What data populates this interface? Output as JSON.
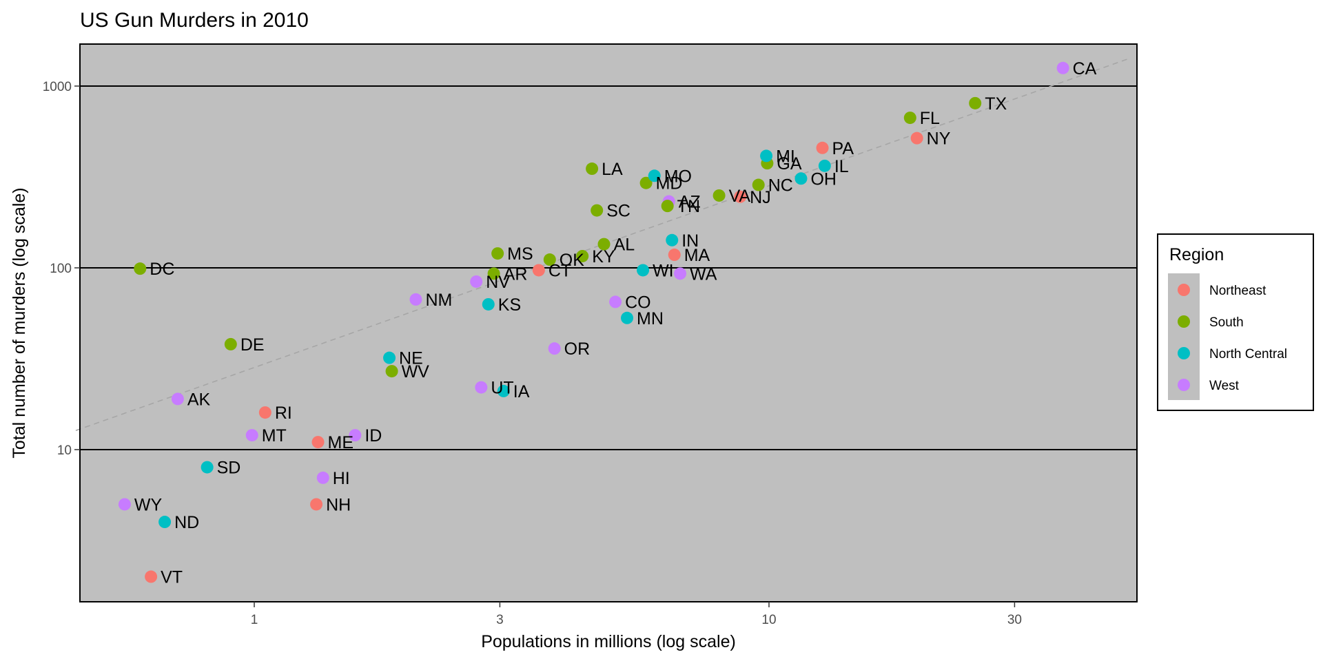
{
  "chart_data": {
    "type": "scatter",
    "title": "US Gun Murders in 2010",
    "xlabel": "Populations in millions (log scale)",
    "ylabel": "Total number of murders (log scale)",
    "x_scale": "log10",
    "y_scale": "log10",
    "xlim": [
      0.45,
      50
    ],
    "ylim": [
      1.5,
      1700
    ],
    "x_ticks": [
      {
        "value": 1,
        "label": "1"
      },
      {
        "value": 3,
        "label": "3"
      },
      {
        "value": 10,
        "label": "10"
      },
      {
        "value": 30,
        "label": "30"
      }
    ],
    "y_ticks": [
      {
        "value": 10,
        "label": "10"
      },
      {
        "value": 100,
        "label": "100"
      },
      {
        "value": 1000,
        "label": "1000"
      }
    ],
    "grid": "major y only",
    "reference_line": {
      "style": "dashed",
      "color": "#a6a6a6",
      "description": "average murder rate line",
      "rate_per_million": 28.3
    },
    "legend": {
      "title": "Region",
      "position": "right",
      "entries": [
        {
          "name": "Northeast",
          "color": "#F8766D"
        },
        {
          "name": "South",
          "color": "#7CAE00"
        },
        {
          "name": "North Central",
          "color": "#00BFC4"
        },
        {
          "name": "West",
          "color": "#C77CFF"
        }
      ]
    },
    "points": [
      {
        "abb": "AL",
        "region": "South",
        "population": 4.78,
        "total": 135
      },
      {
        "abb": "AK",
        "region": "West",
        "population": 0.71,
        "total": 19
      },
      {
        "abb": "AZ",
        "region": "West",
        "population": 6.39,
        "total": 232
      },
      {
        "abb": "AR",
        "region": "South",
        "population": 2.92,
        "total": 93
      },
      {
        "abb": "CA",
        "region": "West",
        "population": 37.25,
        "total": 1257
      },
      {
        "abb": "CO",
        "region": "West",
        "population": 5.03,
        "total": 65
      },
      {
        "abb": "CT",
        "region": "Northeast",
        "population": 3.57,
        "total": 97
      },
      {
        "abb": "DE",
        "region": "South",
        "population": 0.9,
        "total": 38
      },
      {
        "abb": "DC",
        "region": "South",
        "population": 0.6,
        "total": 99
      },
      {
        "abb": "FL",
        "region": "South",
        "population": 18.8,
        "total": 669
      },
      {
        "abb": "GA",
        "region": "South",
        "population": 9.92,
        "total": 376
      },
      {
        "abb": "HI",
        "region": "West",
        "population": 1.36,
        "total": 7
      },
      {
        "abb": "ID",
        "region": "West",
        "population": 1.57,
        "total": 12
      },
      {
        "abb": "IL",
        "region": "North Central",
        "population": 12.83,
        "total": 364
      },
      {
        "abb": "IN",
        "region": "North Central",
        "population": 6.48,
        "total": 142
      },
      {
        "abb": "IA",
        "region": "North Central",
        "population": 3.05,
        "total": 21
      },
      {
        "abb": "KS",
        "region": "North Central",
        "population": 2.85,
        "total": 63
      },
      {
        "abb": "KY",
        "region": "South",
        "population": 4.34,
        "total": 116
      },
      {
        "abb": "LA",
        "region": "South",
        "population": 4.53,
        "total": 351
      },
      {
        "abb": "ME",
        "region": "Northeast",
        "population": 1.33,
        "total": 11
      },
      {
        "abb": "MD",
        "region": "South",
        "population": 5.77,
        "total": 293
      },
      {
        "abb": "MA",
        "region": "Northeast",
        "population": 6.55,
        "total": 118
      },
      {
        "abb": "MI",
        "region": "North Central",
        "population": 9.88,
        "total": 413
      },
      {
        "abb": "MN",
        "region": "North Central",
        "population": 5.3,
        "total": 53
      },
      {
        "abb": "MS",
        "region": "South",
        "population": 2.97,
        "total": 120
      },
      {
        "abb": "MO",
        "region": "North Central",
        "population": 5.99,
        "total": 321
      },
      {
        "abb": "MT",
        "region": "West",
        "population": 0.99,
        "total": 12
      },
      {
        "abb": "NE",
        "region": "North Central",
        "population": 1.83,
        "total": 32
      },
      {
        "abb": "NV",
        "region": "West",
        "population": 2.7,
        "total": 84
      },
      {
        "abb": "NH",
        "region": "Northeast",
        "population": 1.32,
        "total": 5
      },
      {
        "abb": "NJ",
        "region": "Northeast",
        "population": 8.79,
        "total": 246
      },
      {
        "abb": "NM",
        "region": "West",
        "population": 2.06,
        "total": 67
      },
      {
        "abb": "NY",
        "region": "Northeast",
        "population": 19.38,
        "total": 517
      },
      {
        "abb": "NC",
        "region": "South",
        "population": 9.54,
        "total": 286
      },
      {
        "abb": "ND",
        "region": "North Central",
        "population": 0.67,
        "total": 4
      },
      {
        "abb": "OH",
        "region": "North Central",
        "population": 11.54,
        "total": 310
      },
      {
        "abb": "OK",
        "region": "South",
        "population": 3.75,
        "total": 111
      },
      {
        "abb": "OR",
        "region": "West",
        "population": 3.83,
        "total": 36
      },
      {
        "abb": "PA",
        "region": "Northeast",
        "population": 12.7,
        "total": 457
      },
      {
        "abb": "RI",
        "region": "Northeast",
        "population": 1.05,
        "total": 16
      },
      {
        "abb": "SC",
        "region": "South",
        "population": 4.63,
        "total": 207
      },
      {
        "abb": "SD",
        "region": "North Central",
        "population": 0.81,
        "total": 8
      },
      {
        "abb": "TN",
        "region": "South",
        "population": 6.35,
        "total": 219
      },
      {
        "abb": "TX",
        "region": "South",
        "population": 25.15,
        "total": 805
      },
      {
        "abb": "UT",
        "region": "West",
        "population": 2.76,
        "total": 22
      },
      {
        "abb": "VT",
        "region": "Northeast",
        "population": 0.63,
        "total": 2
      },
      {
        "abb": "VA",
        "region": "South",
        "population": 8.0,
        "total": 250
      },
      {
        "abb": "WA",
        "region": "West",
        "population": 6.72,
        "total": 93
      },
      {
        "abb": "WV",
        "region": "South",
        "population": 1.85,
        "total": 27
      },
      {
        "abb": "WI",
        "region": "North Central",
        "population": 5.69,
        "total": 97
      },
      {
        "abb": "WY",
        "region": "West",
        "population": 0.56,
        "total": 5
      }
    ]
  }
}
